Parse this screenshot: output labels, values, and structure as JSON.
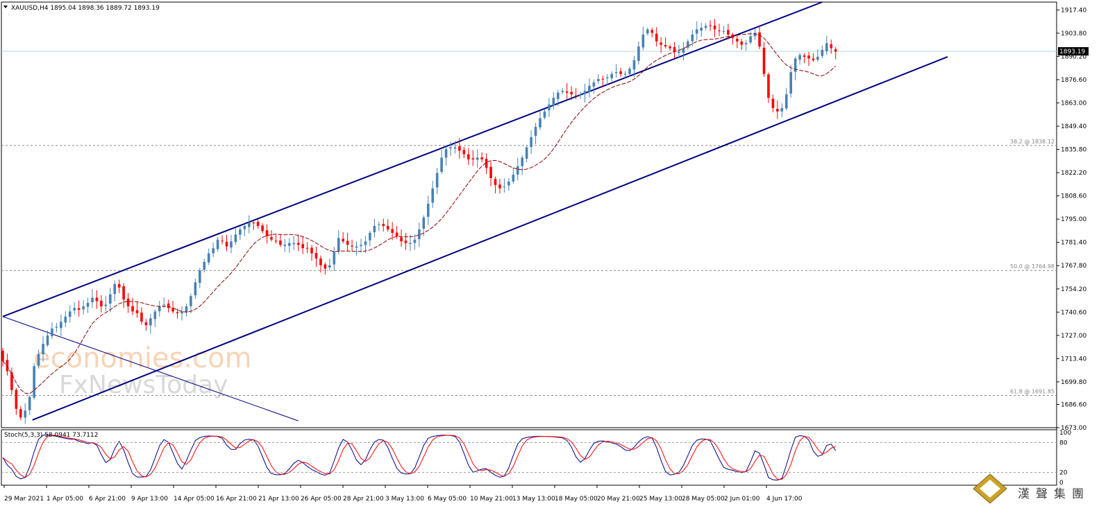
{
  "chart_data": {
    "type": "candlestick",
    "symbol_header": "XAUUSD,H4  1895.04 1898.36 1889.72 1893.19",
    "current_price": "1893.19",
    "y_ticks": [
      "1917.40",
      "1903.80",
      "1890.20",
      "1876.60",
      "1863.00",
      "1849.40",
      "1835.80",
      "1822.20",
      "1808.60",
      "1795.00",
      "1781.40",
      "1767.80",
      "1754.20",
      "1740.60",
      "1727.00",
      "1713.40",
      "1699.80",
      "1686.60",
      "1673.00"
    ],
    "x_ticks": [
      "29 Mar 2021",
      "1 Apr 05:00",
      "6 Apr 21:00",
      "9 Apr 13:00",
      "14 Apr 05:00",
      "16 Apr 21:00",
      "21 Apr 13:00",
      "26 Apr 05:00",
      "28 Apr 21:00",
      "3 May 13:00",
      "6 May 05:00",
      "10 May 21:00",
      "13 May 13:00",
      "18 May 05:00",
      "20 May 21:00",
      "25 May 13:00",
      "28 May 05:00",
      "2 Jun 01:00",
      "4 Jun 17:00"
    ],
    "fib_levels": [
      {
        "label": "38.2 @ 1838.12",
        "value": 1838.12
      },
      {
        "label": "50.0 @ 1764.98",
        "value": 1764.98
      },
      {
        "label": "61.8 @ 1691.85",
        "value": 1691.85
      }
    ],
    "channel": {
      "upper": [
        [
          0,
          1738.0
        ],
        [
          183,
          1922.0
        ]
      ],
      "lower": [
        [
          6,
          1677.5
        ],
        [
          211,
          1890.0
        ]
      ]
    },
    "downtrend_line": [
      [
        0,
        1738.0
      ],
      [
        66,
        1677.0
      ]
    ],
    "close": [
      1712,
      1706,
      1695,
      1684,
      1679,
      1683,
      1691,
      1709,
      1716,
      1722,
      1727,
      1731,
      1732,
      1735,
      1738,
      1741,
      1743,
      1742,
      1744,
      1746,
      1749,
      1747,
      1744,
      1745,
      1751,
      1757,
      1755,
      1748,
      1744,
      1741,
      1740,
      1735,
      1733,
      1737,
      1741,
      1744,
      1745,
      1743,
      1741,
      1740,
      1741,
      1744,
      1750,
      1758,
      1765,
      1770,
      1775,
      1778,
      1783,
      1782,
      1779,
      1782,
      1786,
      1789,
      1791,
      1793,
      1793,
      1791,
      1788,
      1785,
      1783,
      1782,
      1780,
      1780,
      1781,
      1781,
      1780,
      1778,
      1778,
      1775,
      1772,
      1768,
      1766,
      1768,
      1776,
      1784,
      1782,
      1780,
      1779,
      1779,
      1780,
      1782,
      1787,
      1791,
      1792,
      1791,
      1789,
      1787,
      1785,
      1782,
      1781,
      1781,
      1783,
      1789,
      1796,
      1804,
      1813,
      1822,
      1831,
      1836,
      1837,
      1837,
      1835,
      1833,
      1830,
      1830,
      1831,
      1830,
      1825,
      1819,
      1815,
      1813,
      1814,
      1817,
      1821,
      1826,
      1831,
      1837,
      1843,
      1849,
      1854,
      1858,
      1862,
      1866,
      1869,
      1870,
      1869,
      1868,
      1867,
      1868,
      1870,
      1873,
      1875,
      1877,
      1877,
      1878,
      1880,
      1881,
      1880,
      1880,
      1883,
      1888,
      1896,
      1903,
      1906,
      1904,
      1899,
      1897,
      1896,
      1895,
      1893,
      1893,
      1895,
      1899,
      1903,
      1906,
      1907,
      1908,
      1908,
      1906,
      1905,
      1905,
      1903,
      1901,
      1899,
      1897,
      1898,
      1902,
      1904,
      1896,
      1880,
      1866,
      1860,
      1858,
      1860,
      1868,
      1881,
      1889,
      1891,
      1890,
      1889,
      1888,
      1890,
      1894,
      1898,
      1895,
      1893
    ],
    "ma_label": "SMA",
    "stoch_label": "Stoch(5,3,3) 58.0941 73.7112",
    "stoch_levels": [
      "100",
      "80",
      "20",
      "0"
    ],
    "stoch_hlines": [
      80,
      20
    ],
    "colors": {
      "bull": "#4682b4",
      "bear": "#ff0000",
      "channel": "#000080",
      "ma": "#8b0000",
      "price_line": "#add8e6",
      "stoch_main": "#00008b",
      "stoch_signal": "#ff0000",
      "fib": "#888888"
    }
  },
  "watermark": {
    "line1": "economies.com",
    "line2": "FxNewsToday"
  },
  "logo_text": [
    "漢",
    "聲",
    "集",
    "團"
  ]
}
